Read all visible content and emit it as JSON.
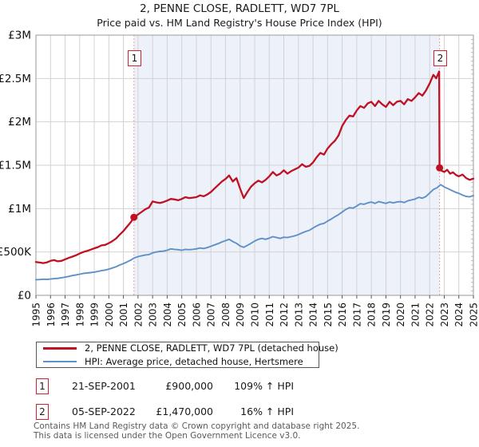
{
  "title": "2, PENNE CLOSE, RADLETT, WD7 7PL",
  "subtitle": "Price paid vs. HM Land Registry's House Price Index (HPI)",
  "chart_data": {
    "type": "line",
    "title": "2, PENNE CLOSE, RADLETT, WD7 7PL",
    "subtitle": "Price paid vs. HM Land Registry's House Price Index (HPI)",
    "xlim": [
      1995,
      2025
    ],
    "ylim": [
      0,
      3000
    ],
    "y_unit": "GBP thousands",
    "grid": true,
    "legend_position": "bottom",
    "x_ticks": [
      1995,
      1996,
      1997,
      1998,
      1999,
      2000,
      2001,
      2002,
      2003,
      2004,
      2005,
      2006,
      2007,
      2008,
      2009,
      2010,
      2011,
      2012,
      2013,
      2014,
      2015,
      2016,
      2017,
      2018,
      2019,
      2020,
      2021,
      2022,
      2023,
      2024,
      2025
    ],
    "y_ticks": [
      {
        "value": 0,
        "label": "£0"
      },
      {
        "value": 500,
        "label": "£500K"
      },
      {
        "value": 1000,
        "label": "£1M"
      },
      {
        "value": 1500,
        "label": "£1.5M"
      },
      {
        "value": 2000,
        "label": "£2M"
      },
      {
        "value": 2500,
        "label": "£2.5M"
      },
      {
        "value": 3000,
        "label": "£3M"
      }
    ],
    "colors": {
      "property_line": "#c01122",
      "hpi_line": "#6090c8",
      "marker_dot": "#c01122",
      "sale_dotted_line": "#ef8a8a",
      "shade_fill": "#edf1fa",
      "grid_line": "#d2d2d2",
      "plot_border": "#9a9a9a",
      "tick": "#555555"
    },
    "shaded_region": {
      "from": 2001.72,
      "to": 2022.68
    },
    "sale_markers": [
      {
        "label": "1",
        "x": 2001.72,
        "value": 900,
        "date": "21-SEP-2001",
        "price": "£900,000"
      },
      {
        "label": "2",
        "x": 2022.68,
        "value": 1470,
        "date": "05-SEP-2022",
        "price": "£1,470,000"
      }
    ],
    "series": [
      {
        "name": "2, PENNE CLOSE, RADLETT, WD7 7PL (detached house)",
        "color": "#c01122",
        "width": 2.3,
        "points": [
          [
            1995,
            385
          ],
          [
            1995.25,
            378
          ],
          [
            1995.5,
            372
          ],
          [
            1995.75,
            380
          ],
          [
            1996,
            398
          ],
          [
            1996.25,
            406
          ],
          [
            1996.5,
            392
          ],
          [
            1996.75,
            398
          ],
          [
            1997,
            415
          ],
          [
            1997.25,
            432
          ],
          [
            1997.5,
            446
          ],
          [
            1997.75,
            462
          ],
          [
            1998,
            482
          ],
          [
            1998.25,
            500
          ],
          [
            1998.5,
            512
          ],
          [
            1998.75,
            526
          ],
          [
            1999,
            542
          ],
          [
            1999.25,
            556
          ],
          [
            1999.5,
            576
          ],
          [
            1999.75,
            582
          ],
          [
            2000,
            602
          ],
          [
            2000.25,
            626
          ],
          [
            2000.5,
            656
          ],
          [
            2000.75,
            700
          ],
          [
            2001,
            742
          ],
          [
            2001.25,
            792
          ],
          [
            2001.5,
            842
          ],
          [
            2001.72,
            900
          ],
          [
            2002,
            932
          ],
          [
            2002.25,
            962
          ],
          [
            2002.5,
            992
          ],
          [
            2002.75,
            1012
          ],
          [
            2003,
            1082
          ],
          [
            2003.25,
            1072
          ],
          [
            2003.5,
            1066
          ],
          [
            2003.75,
            1076
          ],
          [
            2004,
            1092
          ],
          [
            2004.25,
            1112
          ],
          [
            2004.5,
            1106
          ],
          [
            2004.75,
            1096
          ],
          [
            2005,
            1112
          ],
          [
            2005.25,
            1132
          ],
          [
            2005.5,
            1122
          ],
          [
            2005.75,
            1126
          ],
          [
            2006,
            1132
          ],
          [
            2006.25,
            1152
          ],
          [
            2006.5,
            1142
          ],
          [
            2006.75,
            1162
          ],
          [
            2007,
            1192
          ],
          [
            2007.25,
            1232
          ],
          [
            2007.5,
            1272
          ],
          [
            2007.75,
            1312
          ],
          [
            2008,
            1342
          ],
          [
            2008.25,
            1382
          ],
          [
            2008.5,
            1312
          ],
          [
            2008.75,
            1352
          ],
          [
            2009,
            1232
          ],
          [
            2009.25,
            1122
          ],
          [
            2009.5,
            1192
          ],
          [
            2009.75,
            1252
          ],
          [
            2010,
            1292
          ],
          [
            2010.25,
            1322
          ],
          [
            2010.5,
            1302
          ],
          [
            2010.75,
            1332
          ],
          [
            2011,
            1372
          ],
          [
            2011.25,
            1422
          ],
          [
            2011.5,
            1382
          ],
          [
            2011.75,
            1402
          ],
          [
            2012,
            1442
          ],
          [
            2012.25,
            1402
          ],
          [
            2012.5,
            1432
          ],
          [
            2012.75,
            1452
          ],
          [
            2013,
            1472
          ],
          [
            2013.25,
            1512
          ],
          [
            2013.5,
            1482
          ],
          [
            2013.75,
            1492
          ],
          [
            2014,
            1532
          ],
          [
            2014.25,
            1592
          ],
          [
            2014.5,
            1642
          ],
          [
            2014.75,
            1622
          ],
          [
            2015,
            1692
          ],
          [
            2015.25,
            1742
          ],
          [
            2015.5,
            1782
          ],
          [
            2015.75,
            1842
          ],
          [
            2016,
            1952
          ],
          [
            2016.25,
            2022
          ],
          [
            2016.5,
            2072
          ],
          [
            2016.75,
            2062
          ],
          [
            2017,
            2132
          ],
          [
            2017.25,
            2182
          ],
          [
            2017.5,
            2162
          ],
          [
            2017.75,
            2212
          ],
          [
            2018,
            2232
          ],
          [
            2018.25,
            2182
          ],
          [
            2018.5,
            2242
          ],
          [
            2018.75,
            2202
          ],
          [
            2019,
            2172
          ],
          [
            2019.25,
            2232
          ],
          [
            2019.5,
            2192
          ],
          [
            2019.75,
            2232
          ],
          [
            2020,
            2242
          ],
          [
            2020.25,
            2202
          ],
          [
            2020.5,
            2262
          ],
          [
            2020.75,
            2242
          ],
          [
            2021,
            2282
          ],
          [
            2021.25,
            2332
          ],
          [
            2021.5,
            2302
          ],
          [
            2021.75,
            2362
          ],
          [
            2022,
            2442
          ],
          [
            2022.25,
            2542
          ],
          [
            2022.45,
            2502
          ],
          [
            2022.65,
            2580
          ],
          [
            2022.68,
            1470
          ],
          [
            2022.8,
            1438
          ],
          [
            2023,
            1422
          ],
          [
            2023.2,
            1448
          ],
          [
            2023.4,
            1402
          ],
          [
            2023.6,
            1418
          ],
          [
            2023.8,
            1388
          ],
          [
            2024,
            1372
          ],
          [
            2024.25,
            1392
          ],
          [
            2024.5,
            1352
          ],
          [
            2024.75,
            1332
          ],
          [
            2025,
            1345
          ]
        ]
      },
      {
        "name": "HPI: Average price, detached house, Hertsmere",
        "color": "#6090c8",
        "width": 1.9,
        "points": [
          [
            1995,
            180
          ],
          [
            1995.25,
            182
          ],
          [
            1995.5,
            186
          ],
          [
            1995.75,
            184
          ],
          [
            1996,
            188
          ],
          [
            1996.25,
            192
          ],
          [
            1996.5,
            196
          ],
          [
            1996.75,
            202
          ],
          [
            1997,
            210
          ],
          [
            1997.25,
            218
          ],
          [
            1997.5,
            228
          ],
          [
            1997.75,
            236
          ],
          [
            1998,
            244
          ],
          [
            1998.25,
            252
          ],
          [
            1998.5,
            258
          ],
          [
            1998.75,
            262
          ],
          [
            1999,
            268
          ],
          [
            1999.25,
            276
          ],
          [
            1999.5,
            284
          ],
          [
            1999.75,
            292
          ],
          [
            2000,
            302
          ],
          [
            2000.25,
            316
          ],
          [
            2000.5,
            330
          ],
          [
            2000.75,
            350
          ],
          [
            2001,
            366
          ],
          [
            2001.25,
            386
          ],
          [
            2001.5,
            406
          ],
          [
            2001.75,
            432
          ],
          [
            2002,
            446
          ],
          [
            2002.25,
            456
          ],
          [
            2002.5,
            466
          ],
          [
            2002.75,
            470
          ],
          [
            2003,
            490
          ],
          [
            2003.25,
            500
          ],
          [
            2003.5,
            506
          ],
          [
            2003.75,
            510
          ],
          [
            2004,
            520
          ],
          [
            2004.25,
            536
          ],
          [
            2004.5,
            530
          ],
          [
            2004.75,
            526
          ],
          [
            2005,
            520
          ],
          [
            2005.25,
            530
          ],
          [
            2005.5,
            526
          ],
          [
            2005.75,
            530
          ],
          [
            2006,
            536
          ],
          [
            2006.25,
            546
          ],
          [
            2006.5,
            540
          ],
          [
            2006.75,
            550
          ],
          [
            2007,
            566
          ],
          [
            2007.25,
            582
          ],
          [
            2007.5,
            596
          ],
          [
            2007.75,
            616
          ],
          [
            2008,
            630
          ],
          [
            2008.25,
            646
          ],
          [
            2008.5,
            620
          ],
          [
            2008.75,
            600
          ],
          [
            2009,
            570
          ],
          [
            2009.25,
            554
          ],
          [
            2009.5,
            576
          ],
          [
            2009.75,
            600
          ],
          [
            2010,
            626
          ],
          [
            2010.25,
            646
          ],
          [
            2010.5,
            656
          ],
          [
            2010.75,
            646
          ],
          [
            2011,
            660
          ],
          [
            2011.25,
            676
          ],
          [
            2011.5,
            666
          ],
          [
            2011.75,
            656
          ],
          [
            2012,
            670
          ],
          [
            2012.25,
            666
          ],
          [
            2012.5,
            676
          ],
          [
            2012.75,
            686
          ],
          [
            2013,
            700
          ],
          [
            2013.25,
            720
          ],
          [
            2013.5,
            736
          ],
          [
            2013.75,
            750
          ],
          [
            2014,
            776
          ],
          [
            2014.25,
            800
          ],
          [
            2014.5,
            820
          ],
          [
            2014.75,
            830
          ],
          [
            2015,
            856
          ],
          [
            2015.25,
            880
          ],
          [
            2015.5,
            906
          ],
          [
            2015.75,
            930
          ],
          [
            2016,
            960
          ],
          [
            2016.25,
            990
          ],
          [
            2016.5,
            1010
          ],
          [
            2016.75,
            1006
          ],
          [
            2017,
            1030
          ],
          [
            2017.25,
            1056
          ],
          [
            2017.5,
            1050
          ],
          [
            2017.75,
            1066
          ],
          [
            2018,
            1076
          ],
          [
            2018.25,
            1060
          ],
          [
            2018.5,
            1080
          ],
          [
            2018.75,
            1070
          ],
          [
            2019,
            1060
          ],
          [
            2019.25,
            1076
          ],
          [
            2019.5,
            1066
          ],
          [
            2019.75,
            1076
          ],
          [
            2020,
            1080
          ],
          [
            2020.25,
            1070
          ],
          [
            2020.5,
            1090
          ],
          [
            2020.75,
            1100
          ],
          [
            2021,
            1110
          ],
          [
            2021.25,
            1130
          ],
          [
            2021.5,
            1120
          ],
          [
            2021.75,
            1140
          ],
          [
            2022,
            1180
          ],
          [
            2022.25,
            1220
          ],
          [
            2022.5,
            1240
          ],
          [
            2022.75,
            1276
          ],
          [
            2023,
            1250
          ],
          [
            2023.25,
            1230
          ],
          [
            2023.5,
            1210
          ],
          [
            2023.75,
            1190
          ],
          [
            2024,
            1176
          ],
          [
            2024.25,
            1156
          ],
          [
            2024.5,
            1140
          ],
          [
            2024.75,
            1136
          ],
          [
            2025,
            1150
          ]
        ]
      }
    ]
  },
  "legend": {
    "items": [
      {
        "label": "2, PENNE CLOSE, RADLETT, WD7 7PL (detached house)",
        "color": "#c01122"
      },
      {
        "label": "HPI: Average price, detached house, Hertsmere",
        "color": "#6090c8"
      }
    ]
  },
  "annotations": [
    {
      "num": "1",
      "date": "21-SEP-2001",
      "price": "£900,000",
      "hpi": "109% ↑ HPI"
    },
    {
      "num": "2",
      "date": "05-SEP-2022",
      "price": "£1,470,000",
      "hpi": "16% ↑ HPI"
    }
  ],
  "footer": {
    "line1": "Contains HM Land Registry data © Crown copyright and database right 2025.",
    "line2": "This data is licensed under the Open Government Licence v3.0."
  }
}
